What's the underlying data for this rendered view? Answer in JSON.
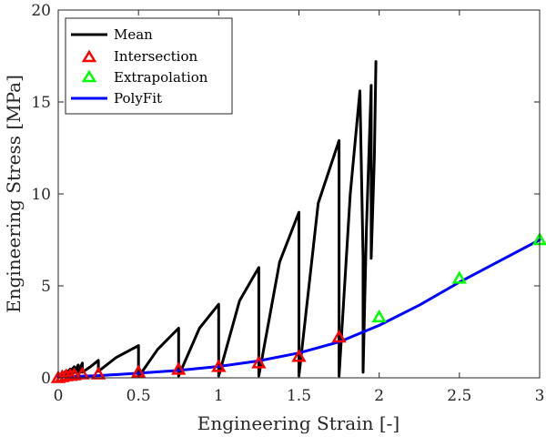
{
  "chart_data": {
    "type": "line",
    "title": "",
    "xlabel": "Engineering Strain [-]",
    "ylabel": "Engineering Stress [MPa]",
    "xlim": [
      0,
      3
    ],
    "ylim": [
      0,
      20
    ],
    "xticks": [
      0,
      0.5,
      1,
      1.5,
      2,
      2.5,
      3
    ],
    "xtick_labels": [
      "0",
      "0.5",
      "1",
      "1.5",
      "2",
      "2.5",
      "3"
    ],
    "yticks": [
      0,
      5,
      10,
      15,
      20
    ],
    "ytick_labels": [
      "0",
      "5",
      "10",
      "15",
      "20"
    ],
    "grid": false,
    "legend_position": "top-left",
    "legend": [
      {
        "label": "Mean",
        "marker": "line",
        "color": "#000000"
      },
      {
        "label": "Intersection",
        "marker": "triangle",
        "color": "#ff0000"
      },
      {
        "label": "Extrapolation",
        "marker": "triangle",
        "color": "#00ff00"
      },
      {
        "label": "PolyFit",
        "marker": "line",
        "color": "#0000ff"
      }
    ],
    "series": [
      {
        "name": "Mean",
        "color": "#000000",
        "style": "line",
        "x": [
          0,
          0.01,
          0.02,
          0.025,
          0.03,
          0.04,
          0.05,
          0.05,
          0.05,
          0.06,
          0.075,
          0.075,
          0.07,
          0.085,
          0.1,
          0.1,
          0.1,
          0.115,
          0.125,
          0.125,
          0.125,
          0.14,
          0.15,
          0.15,
          0.15,
          0.2,
          0.25,
          0.25,
          0.25,
          0.36,
          0.5,
          0.5,
          0.5,
          0.62,
          0.75,
          0.75,
          0.75,
          0.88,
          1.0,
          1.0,
          1.0,
          1.13,
          1.25,
          1.25,
          1.25,
          1.38,
          1.5,
          1.5,
          1.5,
          1.62,
          1.75,
          1.75,
          1.75,
          1.82,
          1.88,
          1.9,
          1.9,
          1.92,
          1.95,
          1.95,
          1.97,
          1.98
        ],
        "y": [
          0,
          0.1,
          0.2,
          0.25,
          0.15,
          0.3,
          0.38,
          0.2,
          0.18,
          0.35,
          0.48,
          0.25,
          0.22,
          0.45,
          0.6,
          0.3,
          0.28,
          0.55,
          0.7,
          0.3,
          0.3,
          0.6,
          0.8,
          0.3,
          0.3,
          0.6,
          0.95,
          0.45,
          0.35,
          1.1,
          1.75,
          0.55,
          0.05,
          1.55,
          2.7,
          0.1,
          0.1,
          2.7,
          4.0,
          1.5,
          0.1,
          4.2,
          6.0,
          2.1,
          0.1,
          6.3,
          9.0,
          3.3,
          0.1,
          9.5,
          12.9,
          4.8,
          0.1,
          10.0,
          15.6,
          6.5,
          0.3,
          8.0,
          15.9,
          6.5,
          12.0,
          17.2
        ]
      },
      {
        "name": "Intersection",
        "color": "#ff0000",
        "style": "triangle",
        "x": [
          0,
          0.025,
          0.05,
          0.075,
          0.1,
          0.15,
          0.25,
          0.5,
          0.75,
          1.0,
          1.25,
          1.5,
          1.75
        ],
        "y": [
          0.0,
          0.05,
          0.1,
          0.12,
          0.15,
          0.2,
          0.2,
          0.3,
          0.45,
          0.6,
          0.8,
          1.15,
          2.2
        ]
      },
      {
        "name": "Extrapolation",
        "color": "#00ff00",
        "style": "triangle",
        "x": [
          2.0,
          2.5,
          3.0
        ],
        "y": [
          3.3,
          5.4,
          7.5
        ]
      },
      {
        "name": "PolyFit",
        "color": "#0000ff",
        "style": "line",
        "x": [
          0,
          0.25,
          0.5,
          0.75,
          1.0,
          1.25,
          1.5,
          1.75,
          2.0,
          2.25,
          2.5,
          2.75,
          3.0
        ],
        "y": [
          0.05,
          0.12,
          0.25,
          0.4,
          0.62,
          0.92,
          1.35,
          1.95,
          2.85,
          3.95,
          5.2,
          6.35,
          7.5
        ]
      }
    ]
  }
}
